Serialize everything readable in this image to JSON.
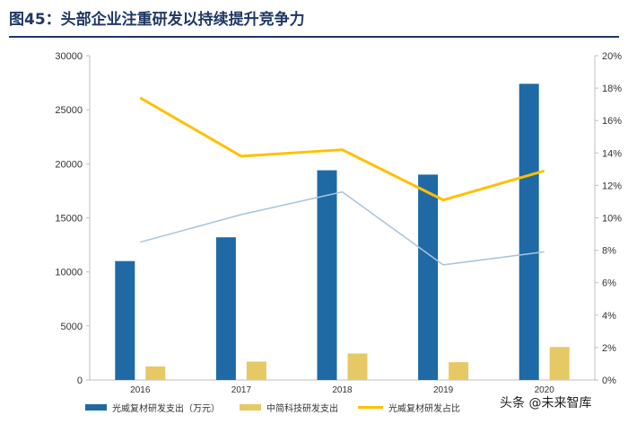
{
  "title": "图45：头部企业注重研发以持续提升竞争力",
  "watermark": "头条 @未来智库",
  "colors": {
    "bar_primary": "#1f6aa5",
    "bar_secondary": "#e6c865",
    "line_primary": "#ffc000",
    "line_secondary": "#a9c4dc",
    "title": "#1f3864"
  },
  "chart_data": {
    "type": "bar",
    "categories": [
      "2016",
      "2017",
      "2018",
      "2019",
      "2020"
    ],
    "ylim_left": [
      0,
      30000
    ],
    "yticks_left": [
      "0",
      "5000",
      "10000",
      "15000",
      "20000",
      "25000",
      "30000"
    ],
    "ylim_right": [
      0,
      20
    ],
    "yticks_right": [
      "0%",
      "2%",
      "4%",
      "6%",
      "8%",
      "10%",
      "12%",
      "14%",
      "16%",
      "18%",
      "20%"
    ],
    "series": [
      {
        "name": "光威复材研发支出（万元）",
        "type": "bar",
        "axis": "left",
        "values": [
          11000,
          13200,
          19400,
          19000,
          27400
        ]
      },
      {
        "name": "中简科技研发支出",
        "type": "bar",
        "axis": "left",
        "values": [
          1250,
          1700,
          2450,
          1650,
          3050
        ]
      },
      {
        "name": "光威复材研发占比",
        "type": "line",
        "axis": "right",
        "values": [
          17.4,
          13.8,
          14.2,
          11.1,
          12.9
        ]
      },
      {
        "name": "",
        "type": "line",
        "axis": "right",
        "values": [
          8.5,
          10.2,
          11.6,
          7.1,
          7.9
        ]
      }
    ],
    "legend": "bottom",
    "grid": false
  }
}
